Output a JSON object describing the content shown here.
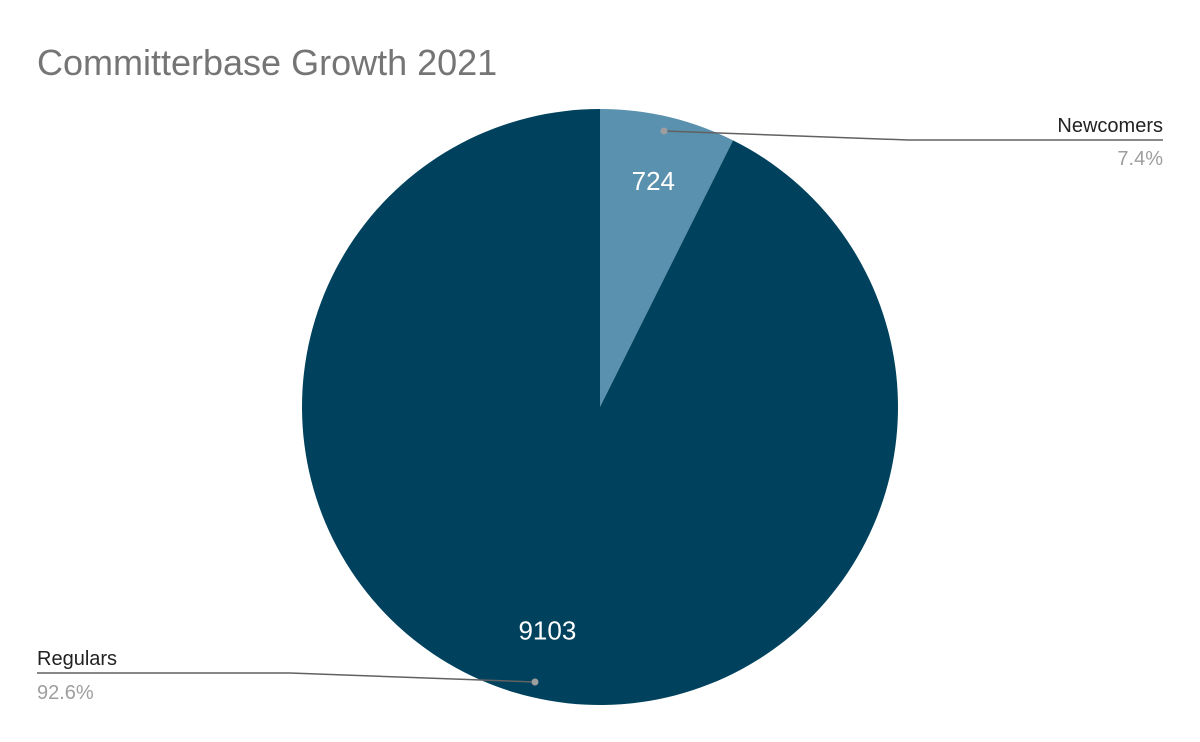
{
  "chart_data": {
    "type": "pie",
    "title": "Committerbase Growth 2021",
    "slices": [
      {
        "name": "Newcomers",
        "value": 724,
        "percent_label": "7.4%",
        "color": "#5a91ae"
      },
      {
        "name": "Regulars",
        "value": 9103,
        "percent_label": "92.6%",
        "color": "#00425e"
      }
    ],
    "start_angle_deg": 0,
    "direction": "clockwise",
    "legend": "none",
    "label_style": "leader-lines"
  }
}
